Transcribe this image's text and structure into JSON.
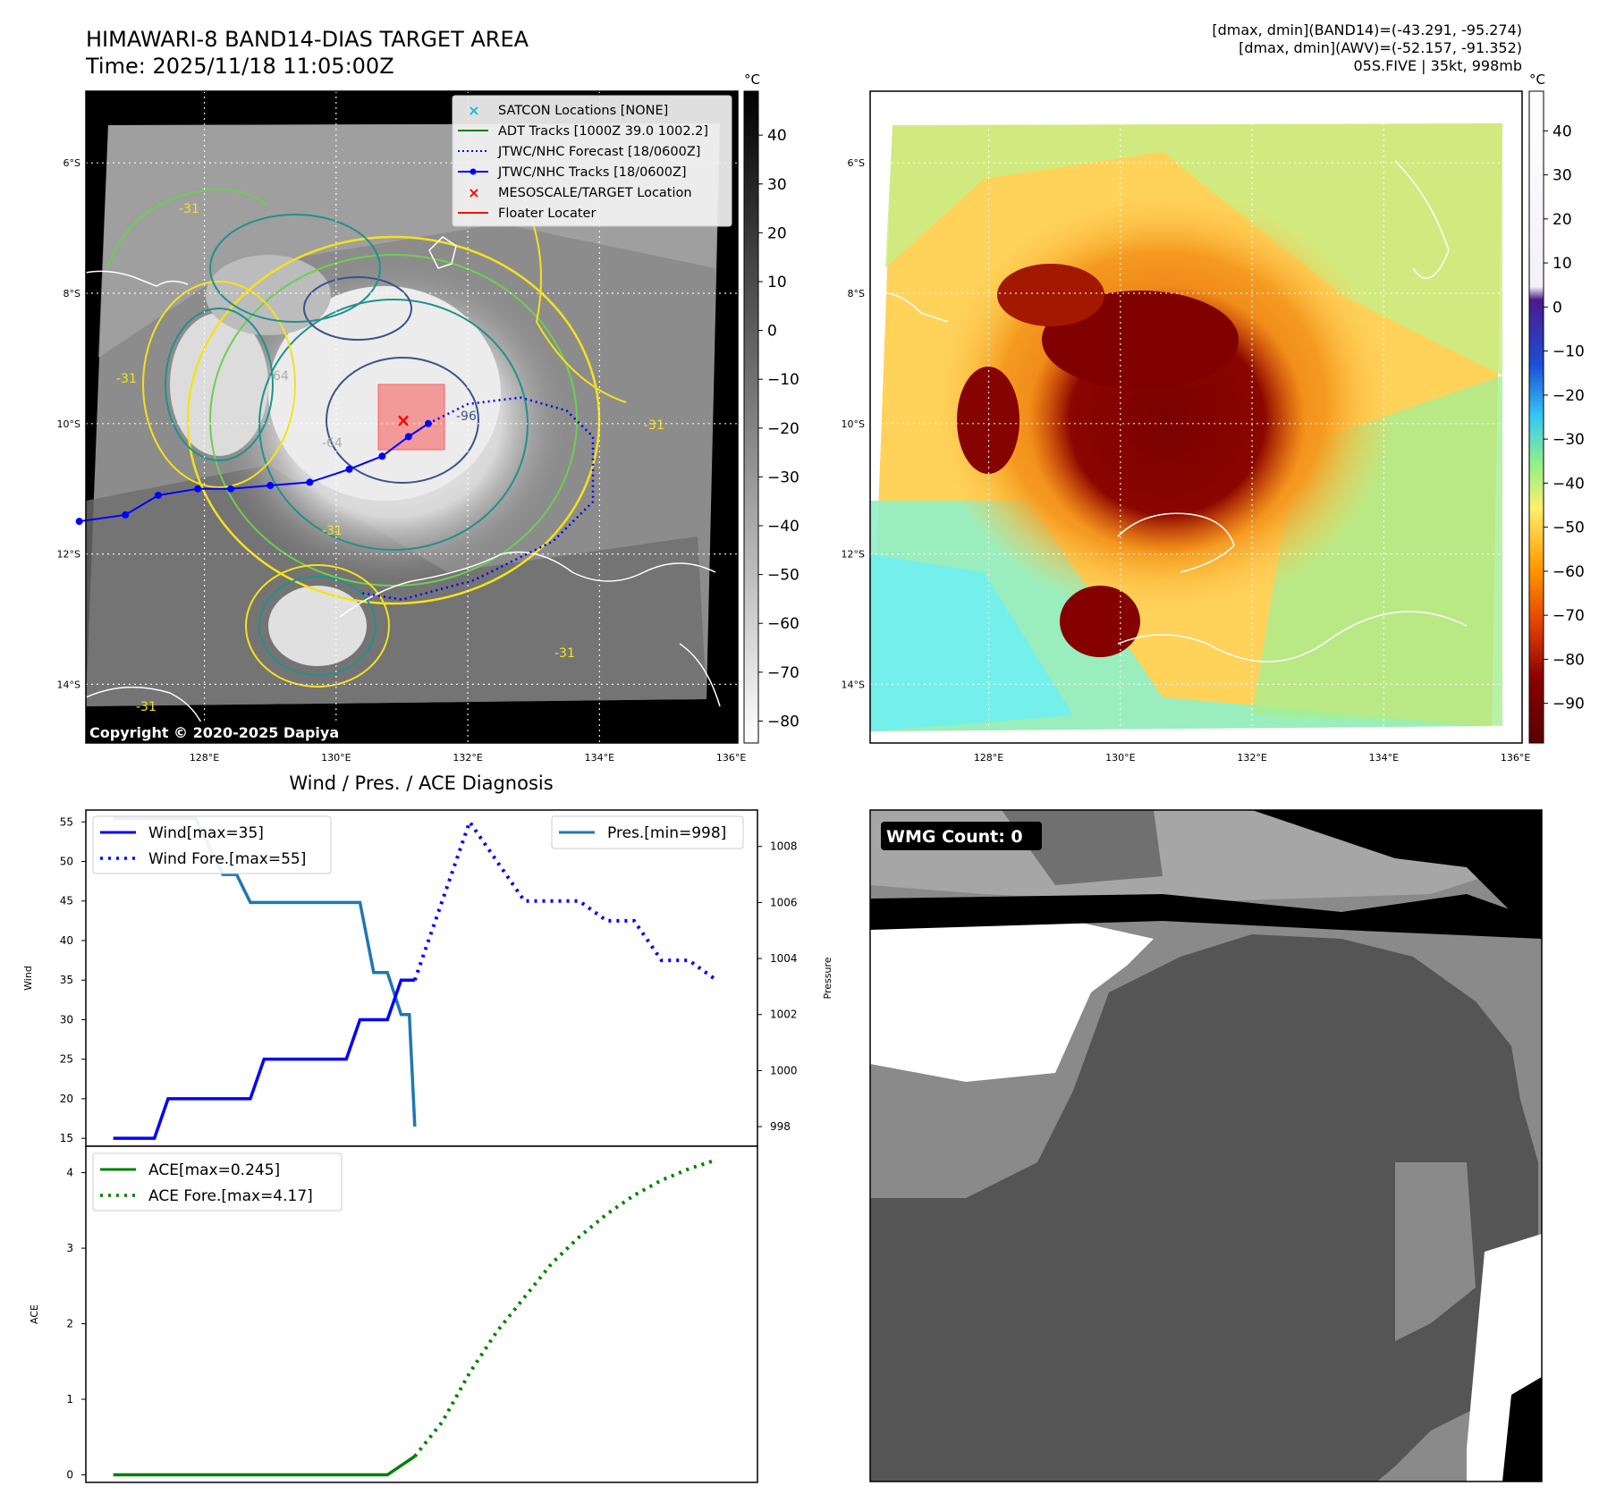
{
  "header": {
    "title": "HIMAWARI-8 BAND14-DIAS TARGET AREA",
    "time": "Time: 2025/11/18 11:05:00Z",
    "stats_band14": "[dmax, dmin](BAND14)=(-43.291, -95.274)",
    "stats_awv": "[dmax, dmin](AWV)=(-52.157, -91.352)",
    "storm": "05S.FIVE | 35kt, 998mb"
  },
  "map_ir": {
    "copyright": "Copyright © 2020-2025 Dapiya",
    "unit": "°C",
    "lat_ticks": [
      "6°S",
      "8°S",
      "10°S",
      "12°S",
      "14°S"
    ],
    "lon_ticks": [
      "128°E",
      "130°E",
      "132°E",
      "134°E",
      "136°E"
    ],
    "colorbar_ticks": [
      "40",
      "30",
      "20",
      "10",
      "0",
      "−10",
      "−20",
      "−30",
      "−40",
      "−50",
      "−60",
      "−70",
      "−80"
    ],
    "legend": [
      {
        "label": "SATCON Locations [NONE]",
        "color": "#17becf",
        "symbol": "x"
      },
      {
        "label": "ADT Tracks [1000Z 39.0 1002.2]",
        "color": "#008000",
        "symbol": "line"
      },
      {
        "label": "JTWC/NHC Forecast [18/0600Z]",
        "color": "#0000ff",
        "symbol": "dotted"
      },
      {
        "label": "JTWC/NHC Tracks [18/0600Z]",
        "color": "#0000ff",
        "symbol": "line-dot"
      },
      {
        "label": "MESOSCALE/TARGET Location",
        "color": "#ff0000",
        "symbol": "x"
      },
      {
        "label": "Floater Locater",
        "color": "#ff0000",
        "symbol": "line"
      }
    ],
    "contour_labels": [
      "-31",
      "-31",
      "-64",
      "-64",
      "-96",
      "-31",
      "-31",
      "-31",
      "-31"
    ],
    "track_lonlat": [
      [
        126.1,
        11.5
      ],
      [
        126.8,
        11.4
      ],
      [
        127.3,
        11.1
      ],
      [
        127.9,
        11.0
      ],
      [
        128.4,
        11.0
      ],
      [
        129.0,
        10.95
      ],
      [
        129.6,
        10.9
      ],
      [
        130.2,
        10.7
      ],
      [
        130.7,
        10.5
      ],
      [
        131.1,
        10.2
      ],
      [
        131.4,
        10.0
      ]
    ],
    "forecast_lonlat": [
      [
        131.4,
        10.0
      ],
      [
        132.0,
        9.7
      ],
      [
        132.8,
        9.6
      ],
      [
        133.5,
        9.8
      ],
      [
        133.9,
        10.2
      ],
      [
        133.9,
        11.2
      ],
      [
        133.3,
        11.8
      ],
      [
        132.1,
        12.4
      ],
      [
        131.0,
        12.7
      ],
      [
        130.4,
        12.6
      ]
    ]
  },
  "map_awv": {
    "unit": "°C",
    "lat_ticks": [
      "6°S",
      "8°S",
      "10°S",
      "12°S",
      "14°S"
    ],
    "lon_ticks": [
      "128°E",
      "130°E",
      "132°E",
      "134°E",
      "136°E"
    ],
    "colorbar_ticks": [
      "40",
      "30",
      "20",
      "10",
      "0",
      "−10",
      "−20",
      "−30",
      "−40",
      "−50",
      "−60",
      "−70",
      "−80",
      "−90"
    ]
  },
  "diagnosis": {
    "title": "Wind / Pres. / ACE Diagnosis",
    "wmg": "WMG Count: 0"
  },
  "chart_data": [
    {
      "type": "line",
      "ylabel": "Wind",
      "y2label": "Pressure",
      "ylim": [
        14,
        56.5
      ],
      "y2lim": [
        997.3,
        1009.3
      ],
      "yticks": [
        "15",
        "20",
        "25",
        "30",
        "35",
        "40",
        "45",
        "50",
        "55"
      ],
      "y2ticks": [
        "998",
        "1000",
        "1002",
        "1004",
        "1006",
        "1008"
      ],
      "series": [
        {
          "name": "Wind[max=35]",
          "color": "#0000ff",
          "style": "solid",
          "x": [
            0,
            1.5,
            2,
            5,
            5.5,
            8.5,
            9,
            10,
            10.5,
            11
          ],
          "values": [
            15,
            15,
            20,
            20,
            25,
            25,
            30,
            30,
            35,
            35
          ]
        },
        {
          "name": "Wind Fore.[max=55]",
          "color": "#0000ff",
          "style": "dotted",
          "x": [
            11,
            13,
            15,
            16,
            17,
            18,
            19,
            20,
            21,
            22
          ],
          "values": [
            35,
            55,
            45,
            45,
            45,
            42.5,
            42.5,
            37.5,
            37.5,
            35
          ]
        },
        {
          "name": "Pres.[min=998]",
          "color": "#1f77b4",
          "style": "solid",
          "axis": "right",
          "x": [
            0,
            3,
            4,
            4.5,
            5,
            9,
            9.5,
            10,
            10.5,
            10.8,
            11
          ],
          "values": [
            1009,
            1009,
            1007,
            1007,
            1006,
            1006,
            1003.5,
            1003.5,
            1002,
            1002,
            998
          ]
        }
      ]
    },
    {
      "type": "line",
      "ylabel": "ACE",
      "ylim": [
        -0.1,
        4.35
      ],
      "yticks": [
        "0",
        "1",
        "2",
        "3",
        "4"
      ],
      "series": [
        {
          "name": "ACE[max=0.245]",
          "color": "#008000",
          "style": "solid",
          "x": [
            0,
            10,
            11
          ],
          "values": [
            0,
            0,
            0.245
          ]
        },
        {
          "name": "ACE Fore.[max=4.17]",
          "color": "#008000",
          "style": "dotted",
          "x": [
            11,
            12,
            13,
            14,
            15,
            16,
            17,
            18,
            19,
            20,
            21,
            22
          ],
          "values": [
            0.245,
            0.7,
            1.35,
            1.9,
            2.35,
            2.8,
            3.15,
            3.45,
            3.7,
            3.9,
            4.05,
            4.17
          ]
        }
      ]
    }
  ]
}
